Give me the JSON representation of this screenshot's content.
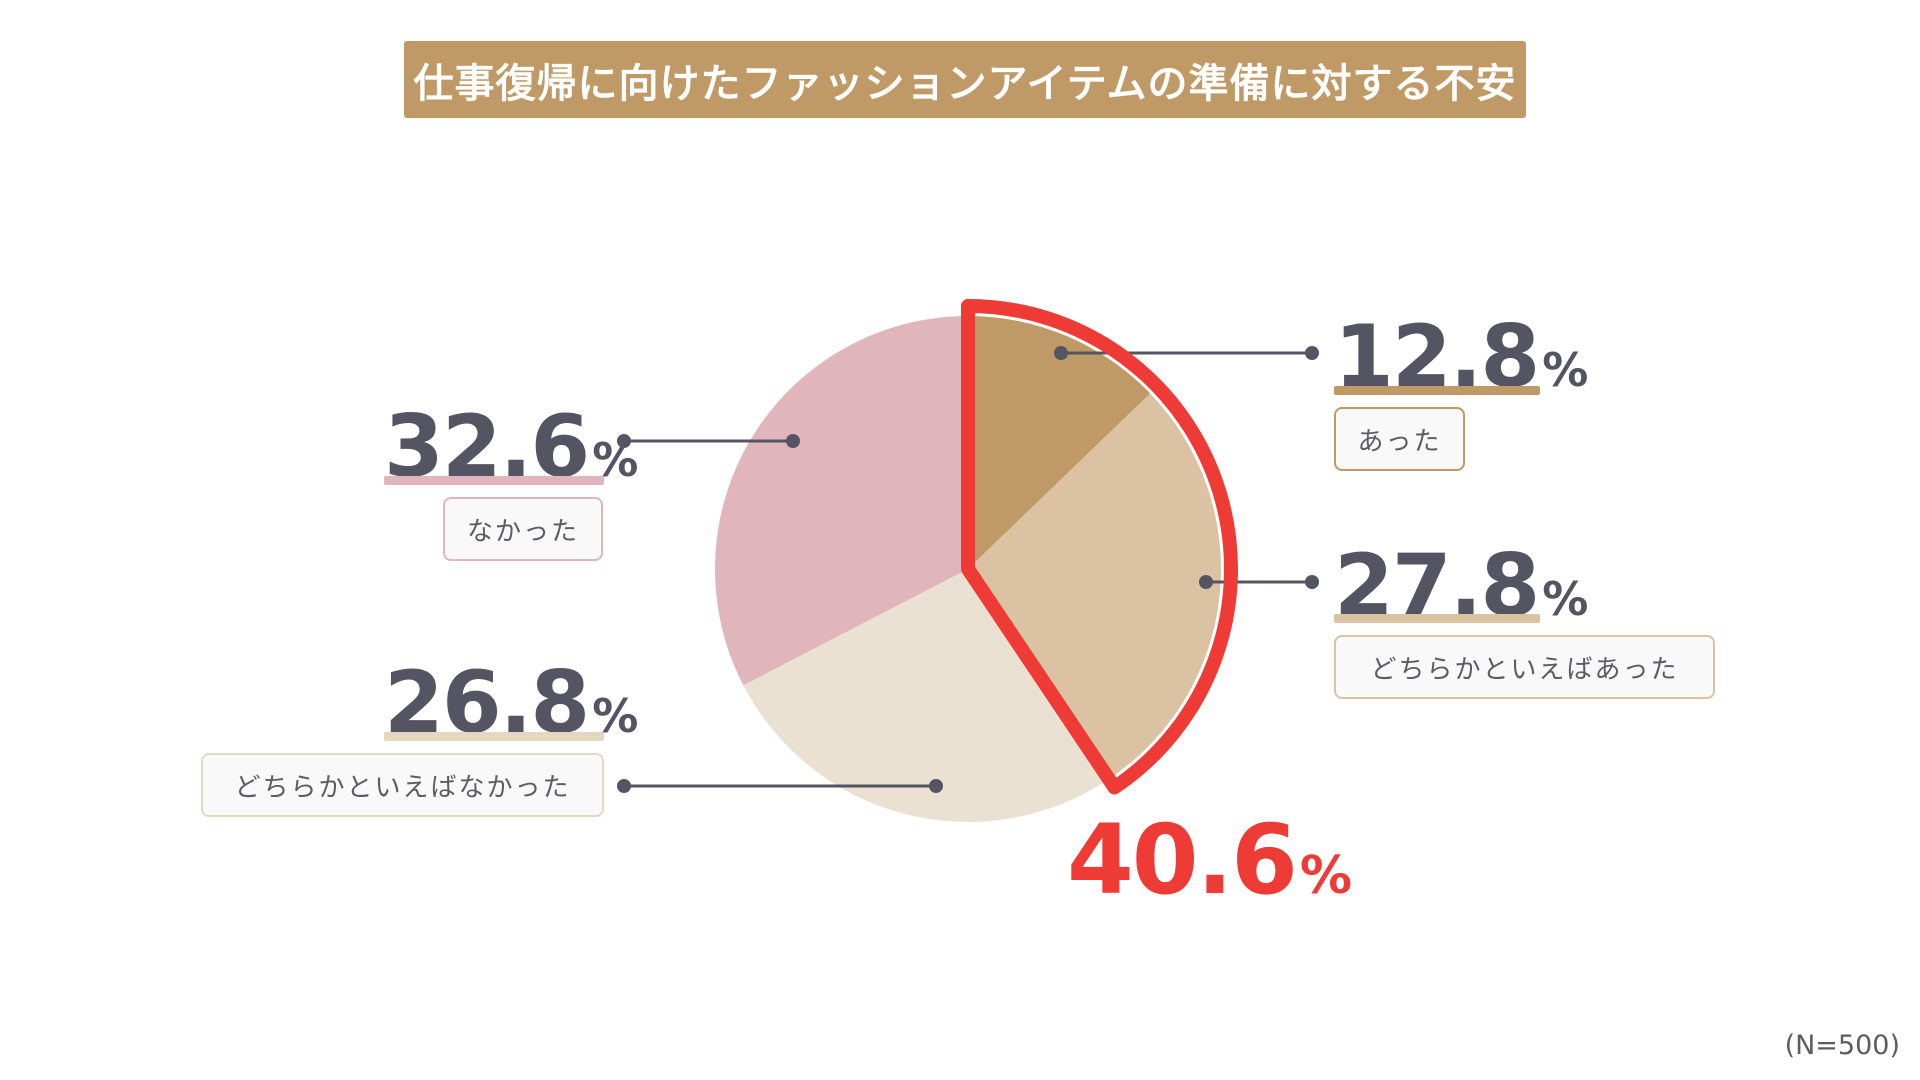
{
  "chart_data": {
    "type": "pie",
    "title": "仕事復帰に向けたファッションアイテムの準備に対する不安",
    "slices": [
      {
        "label": "あった",
        "value": 12.8,
        "display": "12.8",
        "color": "#bf9a66",
        "line_color": "#bf9a66"
      },
      {
        "label": "どちらかといえばあった",
        "value": 27.8,
        "display": "27.8",
        "color": "#dbc2a3",
        "line_color": "#dbc2a3"
      },
      {
        "label": "どちらかといえばなかった",
        "value": 26.8,
        "display": "26.8",
        "color": "#ebe1d3",
        "line_color": "#e4d8c2"
      },
      {
        "label": "なかった",
        "value": 32.6,
        "display": "32.6",
        "color": "#e1b5bc",
        "line_color": "#e1b5bc"
      }
    ],
    "unit": "%",
    "highlight": {
      "display": "40.6",
      "unit": "%",
      "color": "#ee3b36"
    },
    "note": "(N=500)"
  },
  "colors": {
    "accent": "#bf9a66",
    "text": "#545463",
    "highlight": "#ee3b36"
  }
}
